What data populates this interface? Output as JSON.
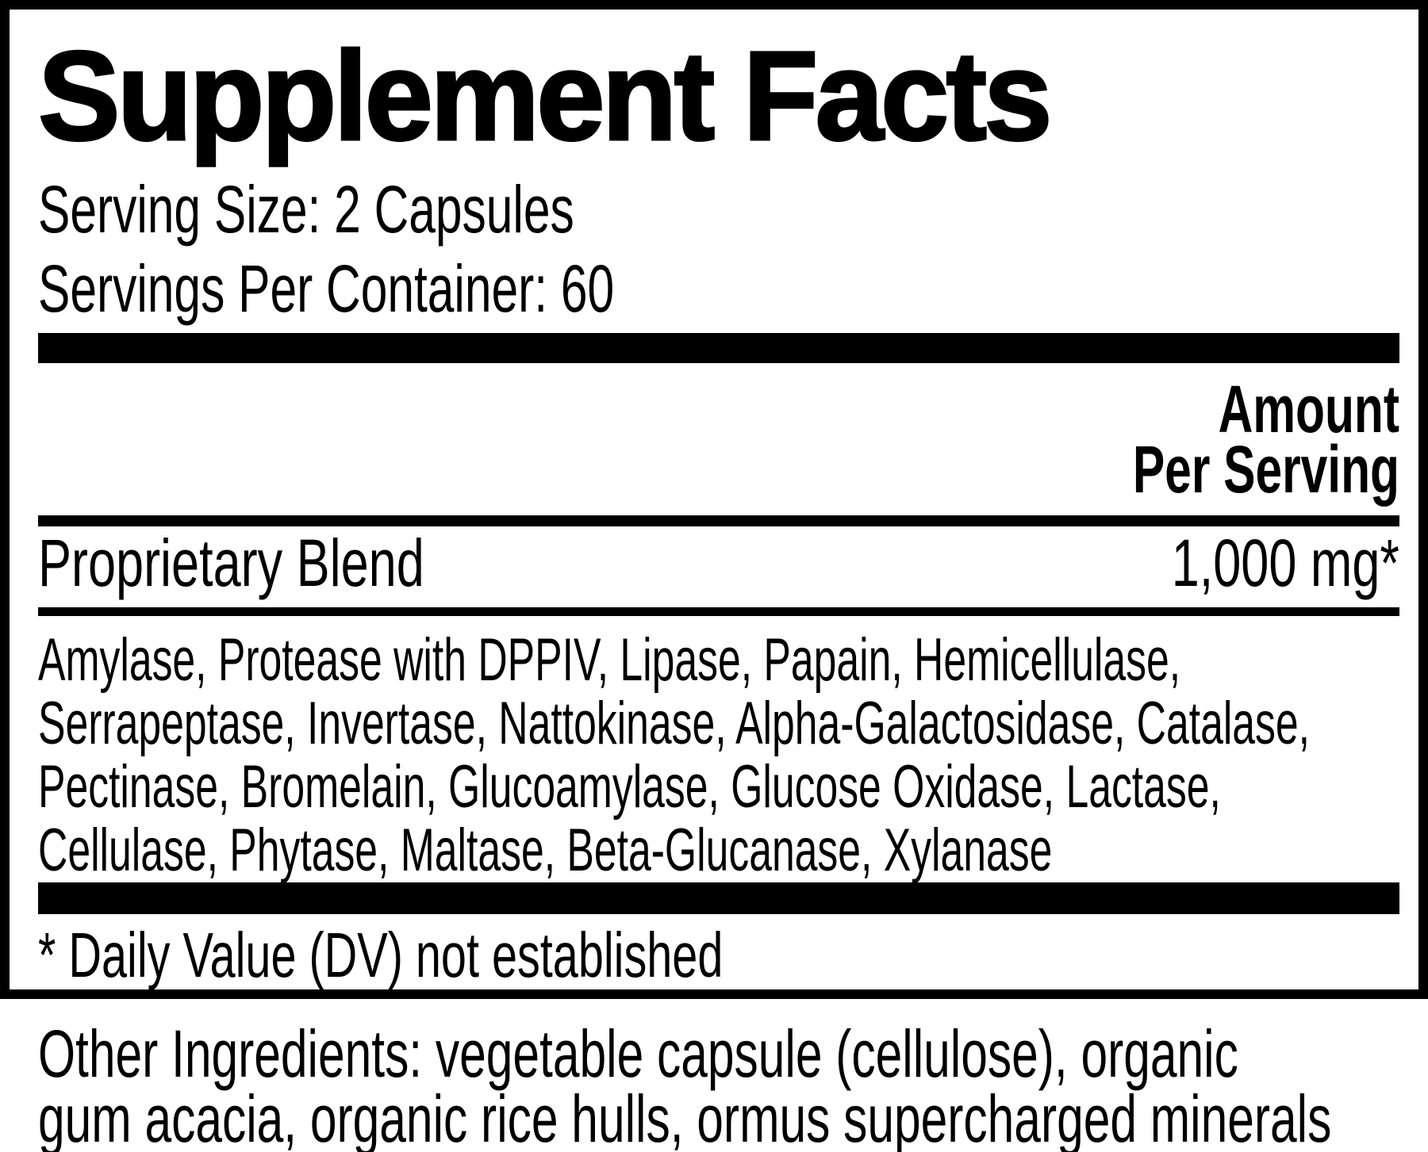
{
  "colors": {
    "text": "#000000",
    "background": "#ffffff"
  },
  "label": {
    "title": "Supplement Facts",
    "serving_size": "Serving Size: 2 Capsules",
    "servings_per_container": "Servings Per Container: 60",
    "amount_header": {
      "line1": "Amount",
      "line2": "Per Serving"
    },
    "blend": {
      "name": "Proprietary Blend",
      "amount": "1,000 mg*"
    },
    "blend_lines": [
      "Amylase, Protease with DPPIV, Lipase, Papain, Hemicellulase,",
      "Serrapeptase, Invertase, Nattokinase, Alpha-Galactosidase, Catalase,",
      "Pectinase, Bromelain, Glucoamylase, Glucose Oxidase, Lactase,",
      "Cellulase, Phytase, Maltase, Beta-Glucanase, Xylanase"
    ],
    "footnote": "* Daily Value (DV) not established"
  },
  "other_ingredients": {
    "lines": [
      "Other Ingredients: vegetable capsule (cellulose), organic",
      "gum acacia, organic rice hulls, ormus supercharged minerals"
    ]
  }
}
